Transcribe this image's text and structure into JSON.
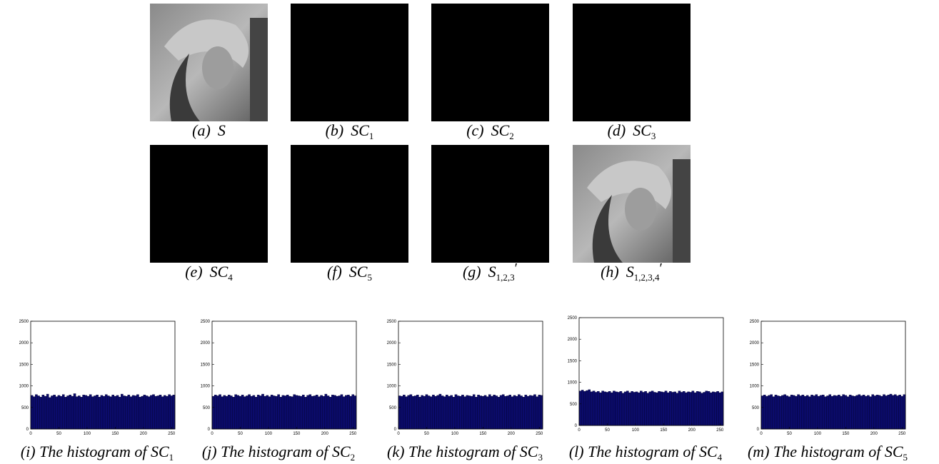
{
  "panels": [
    {
      "tag": "(a)",
      "name": "S",
      "kind": "photo"
    },
    {
      "tag": "(b)",
      "name": "SC",
      "sub": "1",
      "kind": "noise"
    },
    {
      "tag": "(c)",
      "name": "SC",
      "sub": "2",
      "kind": "noise"
    },
    {
      "tag": "(d)",
      "name": "SC",
      "sub": "3",
      "kind": "noise"
    },
    {
      "tag": "(e)",
      "name": "SC",
      "sub": "4",
      "kind": "noise"
    },
    {
      "tag": "(f)",
      "name": "SC",
      "sub": "5",
      "kind": "noise"
    },
    {
      "tag": "(g)",
      "name": "S",
      "sub": "1,2,3",
      "prime": "′",
      "kind": "noise"
    },
    {
      "tag": "(h)",
      "name": "S",
      "sub": "1,2,3,4",
      "prime": "′",
      "kind": "photo"
    }
  ],
  "chart_data": [
    {
      "type": "histogram",
      "caption": "(i) The histogram of SC",
      "caption_sub": "1",
      "color": "#0b0b6b",
      "bins": [
        0,
        4,
        8,
        12,
        16,
        20,
        24,
        28,
        32,
        36,
        40,
        44,
        48,
        52,
        56,
        60,
        64,
        68,
        72,
        76,
        80,
        84,
        88,
        92,
        96,
        100,
        104,
        108,
        112,
        116,
        120,
        124,
        128,
        132,
        136,
        140,
        144,
        148,
        152,
        156,
        160,
        164,
        168,
        172,
        176,
        180,
        184,
        188,
        192,
        196,
        200,
        204,
        208,
        212,
        216,
        220,
        224,
        228,
        232,
        236,
        240,
        244,
        248,
        252,
        256
      ],
      "values": [
        780,
        750,
        800,
        770,
        740,
        790,
        760,
        810,
        730,
        770,
        790,
        750,
        780,
        760,
        800,
        740,
        770,
        790,
        760,
        820,
        750,
        770,
        740,
        790,
        780,
        760,
        800,
        750,
        770,
        790,
        740,
        780,
        760,
        800,
        770,
        750,
        790,
        760,
        780,
        740,
        810,
        770,
        760,
        790,
        750,
        780,
        770,
        800,
        740,
        760,
        790,
        770,
        750,
        780,
        800,
        760,
        770,
        790,
        750,
        780,
        760,
        800,
        770,
        790
      ],
      "xlim": [
        0,
        256
      ],
      "ylim": [
        0,
        2500
      ],
      "xticks": [
        0,
        50,
        100,
        150,
        200,
        250
      ],
      "yticks": [
        0,
        500,
        1000,
        1500,
        2000,
        2500
      ]
    },
    {
      "type": "histogram",
      "caption": "(j) The histogram of SC",
      "caption_sub": "2",
      "color": "#0b0b6b",
      "bins": [
        0,
        4,
        8,
        12,
        16,
        20,
        24,
        28,
        32,
        36,
        40,
        44,
        48,
        52,
        56,
        60,
        64,
        68,
        72,
        76,
        80,
        84,
        88,
        92,
        96,
        100,
        104,
        108,
        112,
        116,
        120,
        124,
        128,
        132,
        136,
        140,
        144,
        148,
        152,
        156,
        160,
        164,
        168,
        172,
        176,
        180,
        184,
        188,
        192,
        196,
        200,
        204,
        208,
        212,
        216,
        220,
        224,
        228,
        232,
        236,
        240,
        244,
        248,
        252,
        256
      ],
      "values": [
        760,
        790,
        770,
        800,
        750,
        780,
        760,
        790,
        770,
        740,
        800,
        780,
        760,
        790,
        750,
        770,
        800,
        760,
        780,
        740,
        790,
        770,
        810,
        760,
        780,
        750,
        790,
        770,
        760,
        800,
        740,
        780,
        770,
        790,
        760,
        750,
        800,
        780,
        770,
        760,
        790,
        740,
        780,
        800,
        760,
        770,
        790,
        750,
        780,
        760,
        810,
        770,
        740,
        790,
        780,
        760,
        770,
        800,
        750,
        780,
        790,
        760,
        800,
        770
      ],
      "xlim": [
        0,
        256
      ],
      "ylim": [
        0,
        2500
      ],
      "xticks": [
        0,
        50,
        100,
        150,
        200,
        250
      ],
      "yticks": [
        0,
        500,
        1000,
        1500,
        2000,
        2500
      ]
    },
    {
      "type": "histogram",
      "caption": "(k) The histogram of SC",
      "caption_sub": "3",
      "color": "#0b0b6b",
      "bins": [
        0,
        4,
        8,
        12,
        16,
        20,
        24,
        28,
        32,
        36,
        40,
        44,
        48,
        52,
        56,
        60,
        64,
        68,
        72,
        76,
        80,
        84,
        88,
        92,
        96,
        100,
        104,
        108,
        112,
        116,
        120,
        124,
        128,
        132,
        136,
        140,
        144,
        148,
        152,
        156,
        160,
        164,
        168,
        172,
        176,
        180,
        184,
        188,
        192,
        196,
        200,
        204,
        208,
        212,
        216,
        220,
        224,
        228,
        232,
        236,
        240,
        244,
        248,
        252,
        256
      ],
      "values": [
        770,
        760,
        790,
        750,
        780,
        800,
        760,
        770,
        790,
        740,
        780,
        760,
        800,
        770,
        750,
        790,
        760,
        780,
        810,
        770,
        750,
        790,
        760,
        780,
        740,
        800,
        770,
        760,
        790,
        750,
        780,
        770,
        760,
        800,
        740,
        790,
        770,
        760,
        780,
        750,
        800,
        760,
        790,
        770,
        740,
        780,
        800,
        760,
        770,
        790,
        750,
        780,
        760,
        800,
        770,
        740,
        790,
        760,
        780,
        770,
        800,
        750,
        790,
        780
      ],
      "xlim": [
        0,
        256
      ],
      "ylim": [
        0,
        2500
      ],
      "xticks": [
        0,
        50,
        100,
        150,
        200,
        250
      ],
      "yticks": [
        0,
        500,
        1000,
        1500,
        2000,
        2500
      ]
    },
    {
      "type": "histogram",
      "caption": "(l) The histogram of SC",
      "caption_sub": "4",
      "color": "#0b0b6b",
      "bins": [
        0,
        4,
        8,
        12,
        16,
        20,
        24,
        28,
        32,
        36,
        40,
        44,
        48,
        52,
        56,
        60,
        64,
        68,
        72,
        76,
        80,
        84,
        88,
        92,
        96,
        100,
        104,
        108,
        112,
        116,
        120,
        124,
        128,
        132,
        136,
        140,
        144,
        148,
        152,
        156,
        160,
        164,
        168,
        172,
        176,
        180,
        184,
        188,
        192,
        196,
        200,
        204,
        208,
        212,
        216,
        220,
        224,
        228,
        232,
        236,
        240,
        244,
        248,
        252,
        256
      ],
      "values": [
        800,
        820,
        790,
        810,
        830,
        780,
        800,
        770,
        790,
        760,
        800,
        780,
        770,
        790,
        760,
        800,
        780,
        770,
        790,
        750,
        780,
        800,
        760,
        790,
        770,
        780,
        760,
        800,
        770,
        790,
        750,
        780,
        800,
        770,
        760,
        790,
        780,
        770,
        800,
        760,
        790,
        770,
        780,
        750,
        800,
        770,
        790,
        760,
        780,
        770,
        800,
        760,
        790,
        780,
        750,
        770,
        800,
        790,
        760,
        780,
        770,
        790,
        760,
        780
      ],
      "xlim": [
        0,
        256
      ],
      "ylim": [
        0,
        2500
      ],
      "xticks": [
        0,
        50,
        100,
        150,
        200,
        250
      ],
      "yticks": [
        0,
        500,
        1000,
        1500,
        2000,
        2500
      ]
    },
    {
      "type": "histogram",
      "caption": "(m) The histogram of SC",
      "caption_sub": "5",
      "color": "#0b0b6b",
      "bins": [
        0,
        4,
        8,
        12,
        16,
        20,
        24,
        28,
        32,
        36,
        40,
        44,
        48,
        52,
        56,
        60,
        64,
        68,
        72,
        76,
        80,
        84,
        88,
        92,
        96,
        100,
        104,
        108,
        112,
        116,
        120,
        124,
        128,
        132,
        136,
        140,
        144,
        148,
        152,
        156,
        160,
        164,
        168,
        172,
        176,
        180,
        184,
        188,
        192,
        196,
        200,
        204,
        208,
        212,
        216,
        220,
        224,
        228,
        232,
        236,
        240,
        244,
        248,
        252,
        256
      ],
      "values": [
        770,
        790,
        760,
        780,
        800,
        750,
        790,
        770,
        760,
        780,
        800,
        770,
        750,
        790,
        780,
        760,
        800,
        770,
        790,
        760,
        780,
        750,
        790,
        770,
        800,
        760,
        780,
        790,
        750,
        770,
        800,
        760,
        780,
        770,
        790,
        760,
        800,
        780,
        750,
        790,
        770,
        760,
        780,
        800,
        770,
        790,
        760,
        780,
        750,
        800,
        770,
        790,
        780,
        760,
        800,
        770,
        790,
        810,
        780,
        800,
        770,
        790,
        760,
        800
      ],
      "xlim": [
        0,
        256
      ],
      "ylim": [
        0,
        2500
      ],
      "xticks": [
        0,
        50,
        100,
        150,
        200,
        250
      ],
      "yticks": [
        0,
        500,
        1000,
        1500,
        2000,
        2500
      ]
    }
  ]
}
